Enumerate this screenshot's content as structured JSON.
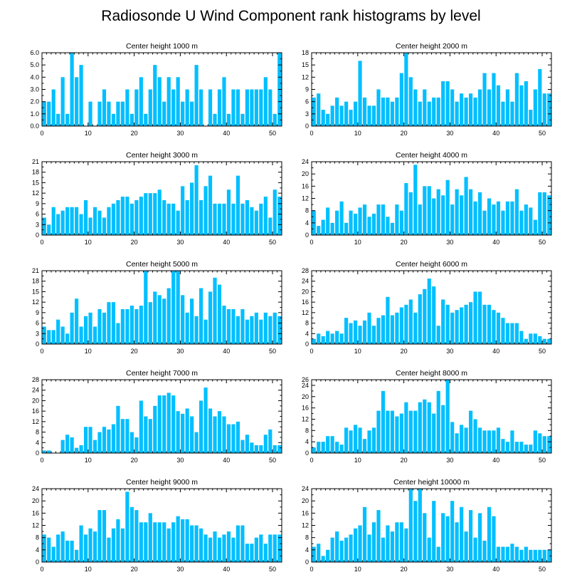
{
  "figure_title": "Radiosonde U Wind Component rank histograms by level",
  "colors": {
    "bar": "#00bfff",
    "axis": "#000000",
    "background": "#ffffff"
  },
  "chart_data": [
    {
      "type": "bar",
      "title": "Center height 1000 m",
      "xlim": [
        0,
        52
      ],
      "xticks": [
        0,
        10,
        20,
        30,
        40,
        50
      ],
      "ylim": [
        0,
        6
      ],
      "yticks": [
        0,
        1,
        2,
        3,
        4,
        5,
        6
      ],
      "ytick_labels": [
        "0.0",
        "1.0",
        "2.0",
        "3.0",
        "4.0",
        "5.0",
        "6.0"
      ],
      "values": [
        2,
        2,
        3,
        1,
        4,
        1,
        6,
        4,
        5,
        0,
        2,
        0,
        2,
        3,
        2,
        1,
        2,
        2,
        3,
        1,
        3,
        4,
        1,
        3,
        5,
        4,
        2,
        4,
        3,
        4,
        2,
        3,
        2,
        5,
        3,
        0,
        3,
        1,
        3,
        4,
        1,
        3,
        3,
        1,
        3,
        3,
        3,
        3,
        4,
        3,
        1,
        6
      ]
    },
    {
      "type": "bar",
      "title": "Center height 2000 m",
      "xlim": [
        0,
        52
      ],
      "xticks": [
        0,
        10,
        20,
        30,
        40,
        50
      ],
      "ylim": [
        0,
        18
      ],
      "yticks": [
        0,
        3,
        6,
        9,
        12,
        15,
        18
      ],
      "ytick_labels": [
        "0",
        "3",
        "6",
        "9",
        "12",
        "15",
        "18"
      ],
      "values": [
        7,
        8,
        4,
        3,
        5,
        7,
        5,
        6,
        4,
        6,
        16,
        7,
        5,
        5,
        9,
        7,
        7,
        6,
        7,
        13,
        18,
        12,
        9,
        6,
        9,
        6,
        7,
        7,
        11,
        11,
        9,
        6,
        8,
        7,
        8,
        7,
        9,
        13,
        9,
        13,
        10,
        6,
        9,
        6,
        13,
        10,
        11,
        4,
        9,
        14,
        8,
        8
      ]
    },
    {
      "type": "bar",
      "title": "Center height 3000 m",
      "xlim": [
        0,
        52
      ],
      "xticks": [
        0,
        10,
        20,
        30,
        40,
        50
      ],
      "ylim": [
        0,
        21
      ],
      "yticks": [
        0,
        3,
        6,
        9,
        12,
        15,
        18,
        21
      ],
      "ytick_labels": [
        "0",
        "3",
        "6",
        "9",
        "12",
        "15",
        "18",
        "21"
      ],
      "values": [
        5,
        3,
        8,
        6,
        7,
        8,
        8,
        8,
        6,
        10,
        5,
        8,
        7,
        5,
        8,
        9,
        10,
        11,
        11,
        9,
        10,
        11,
        12,
        12,
        12,
        13,
        10,
        9,
        9,
        7,
        14,
        10,
        15,
        20,
        10,
        14,
        17,
        9,
        9,
        9,
        13,
        9,
        17,
        9,
        10,
        8,
        7,
        9,
        11,
        5,
        13,
        11
      ]
    },
    {
      "type": "bar",
      "title": "Center height 4000 m",
      "xlim": [
        0,
        52
      ],
      "xticks": [
        0,
        10,
        20,
        30,
        40,
        50
      ],
      "ylim": [
        0,
        24
      ],
      "yticks": [
        0,
        4,
        8,
        12,
        16,
        20,
        24
      ],
      "ytick_labels": [
        "0",
        "4",
        "8",
        "12",
        "16",
        "20",
        "24"
      ],
      "values": [
        8,
        3,
        5,
        9,
        4,
        8,
        11,
        4,
        8,
        7,
        9,
        10,
        6,
        7,
        10,
        10,
        6,
        4,
        10,
        8,
        17,
        14,
        23,
        10,
        16,
        16,
        12,
        15,
        13,
        18,
        10,
        15,
        13,
        19,
        15,
        11,
        14,
        8,
        12,
        10,
        11,
        8,
        11,
        11,
        15,
        8,
        10,
        9,
        5,
        14,
        14,
        13
      ]
    },
    {
      "type": "bar",
      "title": "Center height 5000 m",
      "xlim": [
        0,
        52
      ],
      "xticks": [
        0,
        10,
        20,
        30,
        40,
        50
      ],
      "ylim": [
        0,
        21
      ],
      "yticks": [
        0,
        3,
        6,
        9,
        12,
        15,
        18,
        21
      ],
      "ytick_labels": [
        "0",
        "3",
        "6",
        "9",
        "12",
        "15",
        "18",
        "21"
      ],
      "values": [
        5,
        4,
        4,
        7,
        5,
        3,
        9,
        13,
        5,
        8,
        9,
        5,
        10,
        9,
        12,
        12,
        6,
        10,
        10,
        11,
        10,
        11,
        21,
        12,
        15,
        14,
        13,
        16,
        21,
        21,
        14,
        9,
        13,
        8,
        16,
        7,
        15,
        19,
        17,
        11,
        10,
        10,
        8,
        10,
        7,
        8,
        9,
        7,
        9,
        8,
        9,
        8
      ]
    },
    {
      "type": "bar",
      "title": "Center height 6000 m",
      "xlim": [
        0,
        52
      ],
      "xticks": [
        0,
        10,
        20,
        30,
        40,
        50
      ],
      "ylim": [
        0,
        28
      ],
      "yticks": [
        0,
        4,
        8,
        12,
        16,
        20,
        24,
        28
      ],
      "ytick_labels": [
        "0",
        "4",
        "8",
        "12",
        "16",
        "20",
        "24",
        "28"
      ],
      "values": [
        2,
        4,
        3,
        5,
        4,
        5,
        4,
        10,
        8,
        9,
        7,
        9,
        12,
        7,
        10,
        11,
        18,
        11,
        12,
        14,
        15,
        17,
        12,
        19,
        21,
        25,
        22,
        7,
        17,
        15,
        12,
        13,
        14,
        15,
        16,
        20,
        20,
        15,
        15,
        13,
        12,
        10,
        8,
        8,
        8,
        5,
        2,
        4,
        4,
        3,
        2,
        2
      ]
    },
    {
      "type": "bar",
      "title": "Center height 7000 m",
      "xlim": [
        0,
        52
      ],
      "xticks": [
        0,
        10,
        20,
        30,
        40,
        50
      ],
      "ylim": [
        0,
        28
      ],
      "yticks": [
        0,
        4,
        8,
        12,
        16,
        20,
        24,
        28
      ],
      "ytick_labels": [
        "0",
        "4",
        "8",
        "12",
        "16",
        "20",
        "24",
        "28"
      ],
      "values": [
        1,
        1,
        0,
        0,
        5,
        7,
        6,
        2,
        3,
        10,
        10,
        5,
        8,
        10,
        9,
        11,
        18,
        13,
        13,
        8,
        6,
        20,
        14,
        13,
        18,
        22,
        22,
        23,
        22,
        16,
        15,
        17,
        14,
        8,
        20,
        25,
        17,
        14,
        16,
        14,
        11,
        11,
        12,
        5,
        7,
        4,
        3,
        3,
        7,
        9,
        3,
        3
      ]
    },
    {
      "type": "bar",
      "title": "Center height 8000 m",
      "xlim": [
        0,
        52
      ],
      "xticks": [
        0,
        10,
        20,
        30,
        40,
        50
      ],
      "ylim": [
        0,
        26
      ],
      "yticks": [
        0,
        4,
        8,
        12,
        16,
        20,
        24,
        26
      ],
      "ytick_labels": [
        "0",
        "4",
        "8",
        "12",
        "16",
        "20",
        "24",
        "26"
      ],
      "values": [
        2,
        4,
        4,
        6,
        6,
        4,
        3,
        9,
        8,
        10,
        9,
        5,
        8,
        9,
        15,
        22,
        15,
        15,
        13,
        14,
        18,
        15,
        15,
        18,
        19,
        18,
        14,
        22,
        17,
        26,
        11,
        7,
        10,
        9,
        15,
        12,
        9,
        8,
        8,
        8,
        9,
        5,
        4,
        8,
        4,
        4,
        3,
        3,
        8,
        7,
        6,
        6
      ]
    },
    {
      "type": "bar",
      "title": "Center height 9000 m",
      "xlim": [
        0,
        52
      ],
      "xticks": [
        0,
        10,
        20,
        30,
        40,
        50
      ],
      "ylim": [
        0,
        24
      ],
      "yticks": [
        0,
        4,
        8,
        12,
        16,
        20,
        24
      ],
      "ytick_labels": [
        "0",
        "4",
        "8",
        "12",
        "16",
        "20",
        "24"
      ],
      "values": [
        9,
        8,
        5,
        9,
        10,
        7,
        7,
        4,
        12,
        9,
        11,
        10,
        17,
        17,
        8,
        11,
        14,
        11,
        23,
        18,
        17,
        13,
        13,
        16,
        13,
        13,
        13,
        11,
        13,
        15,
        14,
        14,
        12,
        12,
        11,
        9,
        8,
        10,
        8,
        9,
        10,
        8,
        12,
        12,
        6,
        6,
        8,
        9,
        6,
        9,
        9,
        9
      ]
    },
    {
      "type": "bar",
      "title": "Center height 10000 m",
      "xlim": [
        0,
        52
      ],
      "xticks": [
        0,
        10,
        20,
        30,
        40,
        50
      ],
      "ylim": [
        0,
        24
      ],
      "yticks": [
        0,
        4,
        8,
        12,
        16,
        20,
        24
      ],
      "ytick_labels": [
        "0",
        "4",
        "8",
        "12",
        "16",
        "20",
        "24"
      ],
      "values": [
        5,
        6,
        2,
        4,
        8,
        10,
        7,
        8,
        9,
        11,
        12,
        18,
        9,
        13,
        17,
        8,
        12,
        10,
        13,
        13,
        11,
        24,
        20,
        24,
        16,
        8,
        20,
        5,
        16,
        15,
        20,
        13,
        18,
        10,
        17,
        8,
        16,
        7,
        18,
        15,
        5,
        5,
        5,
        6,
        5,
        4,
        5,
        4,
        4,
        4,
        4,
        4
      ]
    }
  ]
}
